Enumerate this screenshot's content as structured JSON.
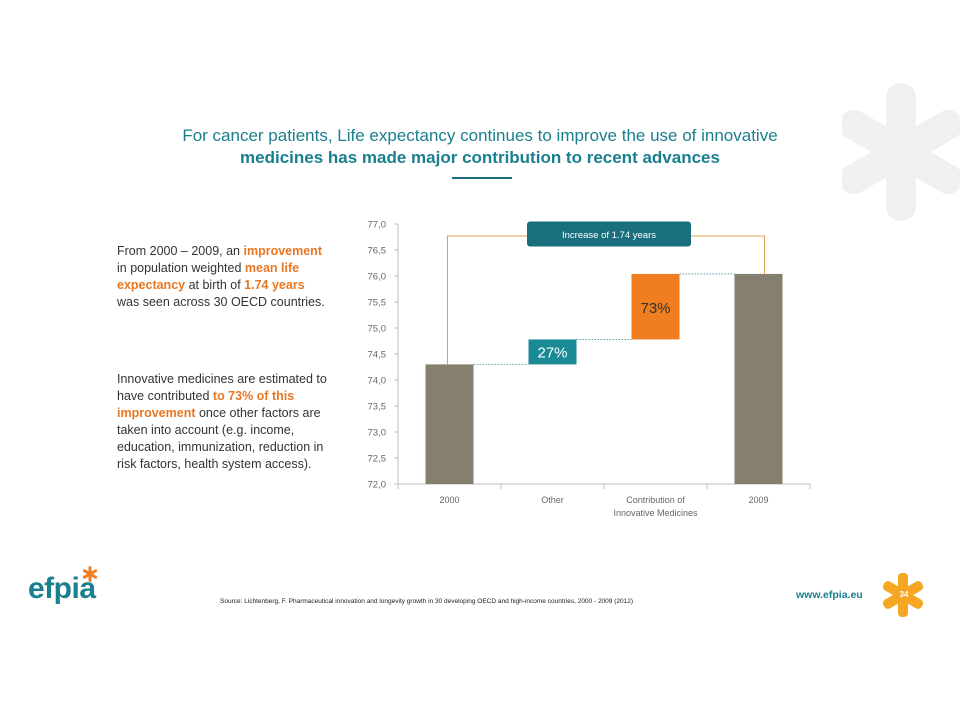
{
  "title": {
    "line1": "For cancer patients, Life expectancy continues to improve the use of innovative",
    "line2": "medicines has made major contribution to recent advances"
  },
  "paragraph1": {
    "t1": "From 2000 – 2009, an ",
    "h1": "improvement",
    "t2": " in population weighted ",
    "h2": "mean life expectancy",
    "t3": " at birth of ",
    "h3": "1.74 years",
    "t4": " was seen across 30 OECD countries."
  },
  "paragraph2": {
    "t1": "Innovative medicines are estimated to have contributed ",
    "h1": "to 73% of this improvement",
    "t2": " once other factors are taken into account (e.g. income, education, immunization, reduction in risk factors, health system access)."
  },
  "chart_data": {
    "type": "bar",
    "subtype": "waterfall",
    "categories": [
      "2000",
      "Other",
      "Contribution of Innovative Medicines",
      "2009"
    ],
    "category_labels": [
      [
        "2000"
      ],
      [
        "Other"
      ],
      [
        "Contribution of",
        "Innovative Medicines"
      ],
      [
        "2009"
      ]
    ],
    "bars": [
      {
        "category": "2000",
        "base": 72.0,
        "top": 74.3,
        "color": "#857f70"
      },
      {
        "category": "Other",
        "base": 74.3,
        "top": 74.78,
        "color": "#1a8a96",
        "label": "27%"
      },
      {
        "category": "Contribution of Innovative Medicines",
        "base": 74.78,
        "top": 76.04,
        "color": "#f07d1f",
        "label": "73%"
      },
      {
        "category": "2009",
        "base": 72.0,
        "top": 76.04,
        "color": "#857f70"
      }
    ],
    "ylim": [
      72.0,
      77.0
    ],
    "yticks": [
      "72,0",
      "72,5",
      "73,0",
      "73,5",
      "74,0",
      "74,5",
      "75,0",
      "75,5",
      "76,0",
      "76,5",
      "77,0"
    ],
    "annotation": "Increase of 1.74 years",
    "annotation_color": "#1a6f7e",
    "bracket_color": "#e0a050",
    "xlabel": "",
    "ylabel": ""
  },
  "footer": {
    "logo": "efpia",
    "source": "Source: Lichtenberg, F. Pharmaceutical innovation and longevity growth in 30 developing OECD and high-income countries, 2000 - 2009 (2012)",
    "website": "www.efpia.eu",
    "page_number": "34"
  },
  "colors": {
    "accent": "#1a7f8e",
    "highlight": "#e87722"
  }
}
